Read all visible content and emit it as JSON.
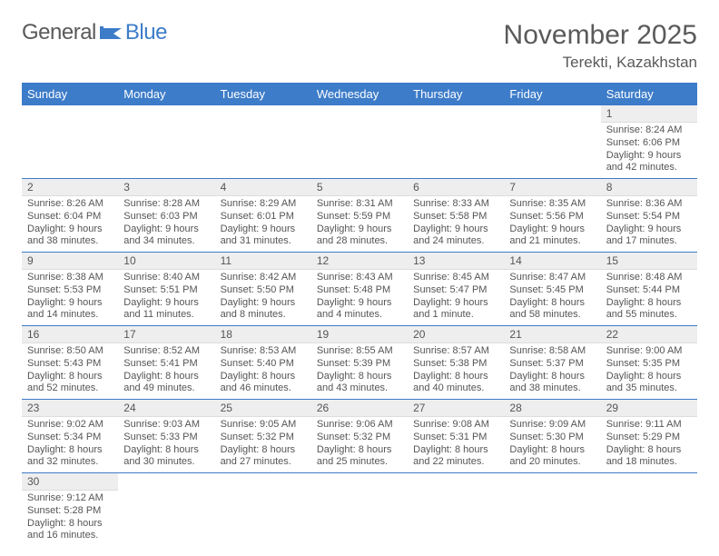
{
  "logo": {
    "general": "General",
    "blue": "Blue"
  },
  "colors": {
    "header_bg": "#3d7cc9",
    "header_text": "#ffffff",
    "rule": "#3d7cc9",
    "daynum_bg": "#eeeeee",
    "body_text": "#555555",
    "title_text": "#5a5a5a",
    "page_bg": "#ffffff"
  },
  "title": "November 2025",
  "location": "Terekti, Kazakhstan",
  "weekdays": [
    "Sunday",
    "Monday",
    "Tuesday",
    "Wednesday",
    "Thursday",
    "Friday",
    "Saturday"
  ],
  "grid": [
    [
      null,
      null,
      null,
      null,
      null,
      null,
      {
        "num": "1",
        "sunrise": "Sunrise: 8:24 AM",
        "sunset": "Sunset: 6:06 PM",
        "daylight": "Daylight: 9 hours and 42 minutes."
      }
    ],
    [
      {
        "num": "2",
        "sunrise": "Sunrise: 8:26 AM",
        "sunset": "Sunset: 6:04 PM",
        "daylight": "Daylight: 9 hours and 38 minutes."
      },
      {
        "num": "3",
        "sunrise": "Sunrise: 8:28 AM",
        "sunset": "Sunset: 6:03 PM",
        "daylight": "Daylight: 9 hours and 34 minutes."
      },
      {
        "num": "4",
        "sunrise": "Sunrise: 8:29 AM",
        "sunset": "Sunset: 6:01 PM",
        "daylight": "Daylight: 9 hours and 31 minutes."
      },
      {
        "num": "5",
        "sunrise": "Sunrise: 8:31 AM",
        "sunset": "Sunset: 5:59 PM",
        "daylight": "Daylight: 9 hours and 28 minutes."
      },
      {
        "num": "6",
        "sunrise": "Sunrise: 8:33 AM",
        "sunset": "Sunset: 5:58 PM",
        "daylight": "Daylight: 9 hours and 24 minutes."
      },
      {
        "num": "7",
        "sunrise": "Sunrise: 8:35 AM",
        "sunset": "Sunset: 5:56 PM",
        "daylight": "Daylight: 9 hours and 21 minutes."
      },
      {
        "num": "8",
        "sunrise": "Sunrise: 8:36 AM",
        "sunset": "Sunset: 5:54 PM",
        "daylight": "Daylight: 9 hours and 17 minutes."
      }
    ],
    [
      {
        "num": "9",
        "sunrise": "Sunrise: 8:38 AM",
        "sunset": "Sunset: 5:53 PM",
        "daylight": "Daylight: 9 hours and 14 minutes."
      },
      {
        "num": "10",
        "sunrise": "Sunrise: 8:40 AM",
        "sunset": "Sunset: 5:51 PM",
        "daylight": "Daylight: 9 hours and 11 minutes."
      },
      {
        "num": "11",
        "sunrise": "Sunrise: 8:42 AM",
        "sunset": "Sunset: 5:50 PM",
        "daylight": "Daylight: 9 hours and 8 minutes."
      },
      {
        "num": "12",
        "sunrise": "Sunrise: 8:43 AM",
        "sunset": "Sunset: 5:48 PM",
        "daylight": "Daylight: 9 hours and 4 minutes."
      },
      {
        "num": "13",
        "sunrise": "Sunrise: 8:45 AM",
        "sunset": "Sunset: 5:47 PM",
        "daylight": "Daylight: 9 hours and 1 minute."
      },
      {
        "num": "14",
        "sunrise": "Sunrise: 8:47 AM",
        "sunset": "Sunset: 5:45 PM",
        "daylight": "Daylight: 8 hours and 58 minutes."
      },
      {
        "num": "15",
        "sunrise": "Sunrise: 8:48 AM",
        "sunset": "Sunset: 5:44 PM",
        "daylight": "Daylight: 8 hours and 55 minutes."
      }
    ],
    [
      {
        "num": "16",
        "sunrise": "Sunrise: 8:50 AM",
        "sunset": "Sunset: 5:43 PM",
        "daylight": "Daylight: 8 hours and 52 minutes."
      },
      {
        "num": "17",
        "sunrise": "Sunrise: 8:52 AM",
        "sunset": "Sunset: 5:41 PM",
        "daylight": "Daylight: 8 hours and 49 minutes."
      },
      {
        "num": "18",
        "sunrise": "Sunrise: 8:53 AM",
        "sunset": "Sunset: 5:40 PM",
        "daylight": "Daylight: 8 hours and 46 minutes."
      },
      {
        "num": "19",
        "sunrise": "Sunrise: 8:55 AM",
        "sunset": "Sunset: 5:39 PM",
        "daylight": "Daylight: 8 hours and 43 minutes."
      },
      {
        "num": "20",
        "sunrise": "Sunrise: 8:57 AM",
        "sunset": "Sunset: 5:38 PM",
        "daylight": "Daylight: 8 hours and 40 minutes."
      },
      {
        "num": "21",
        "sunrise": "Sunrise: 8:58 AM",
        "sunset": "Sunset: 5:37 PM",
        "daylight": "Daylight: 8 hours and 38 minutes."
      },
      {
        "num": "22",
        "sunrise": "Sunrise: 9:00 AM",
        "sunset": "Sunset: 5:35 PM",
        "daylight": "Daylight: 8 hours and 35 minutes."
      }
    ],
    [
      {
        "num": "23",
        "sunrise": "Sunrise: 9:02 AM",
        "sunset": "Sunset: 5:34 PM",
        "daylight": "Daylight: 8 hours and 32 minutes."
      },
      {
        "num": "24",
        "sunrise": "Sunrise: 9:03 AM",
        "sunset": "Sunset: 5:33 PM",
        "daylight": "Daylight: 8 hours and 30 minutes."
      },
      {
        "num": "25",
        "sunrise": "Sunrise: 9:05 AM",
        "sunset": "Sunset: 5:32 PM",
        "daylight": "Daylight: 8 hours and 27 minutes."
      },
      {
        "num": "26",
        "sunrise": "Sunrise: 9:06 AM",
        "sunset": "Sunset: 5:32 PM",
        "daylight": "Daylight: 8 hours and 25 minutes."
      },
      {
        "num": "27",
        "sunrise": "Sunrise: 9:08 AM",
        "sunset": "Sunset: 5:31 PM",
        "daylight": "Daylight: 8 hours and 22 minutes."
      },
      {
        "num": "28",
        "sunrise": "Sunrise: 9:09 AM",
        "sunset": "Sunset: 5:30 PM",
        "daylight": "Daylight: 8 hours and 20 minutes."
      },
      {
        "num": "29",
        "sunrise": "Sunrise: 9:11 AM",
        "sunset": "Sunset: 5:29 PM",
        "daylight": "Daylight: 8 hours and 18 minutes."
      }
    ],
    [
      {
        "num": "30",
        "sunrise": "Sunrise: 9:12 AM",
        "sunset": "Sunset: 5:28 PM",
        "daylight": "Daylight: 8 hours and 16 minutes."
      },
      null,
      null,
      null,
      null,
      null,
      null
    ]
  ]
}
